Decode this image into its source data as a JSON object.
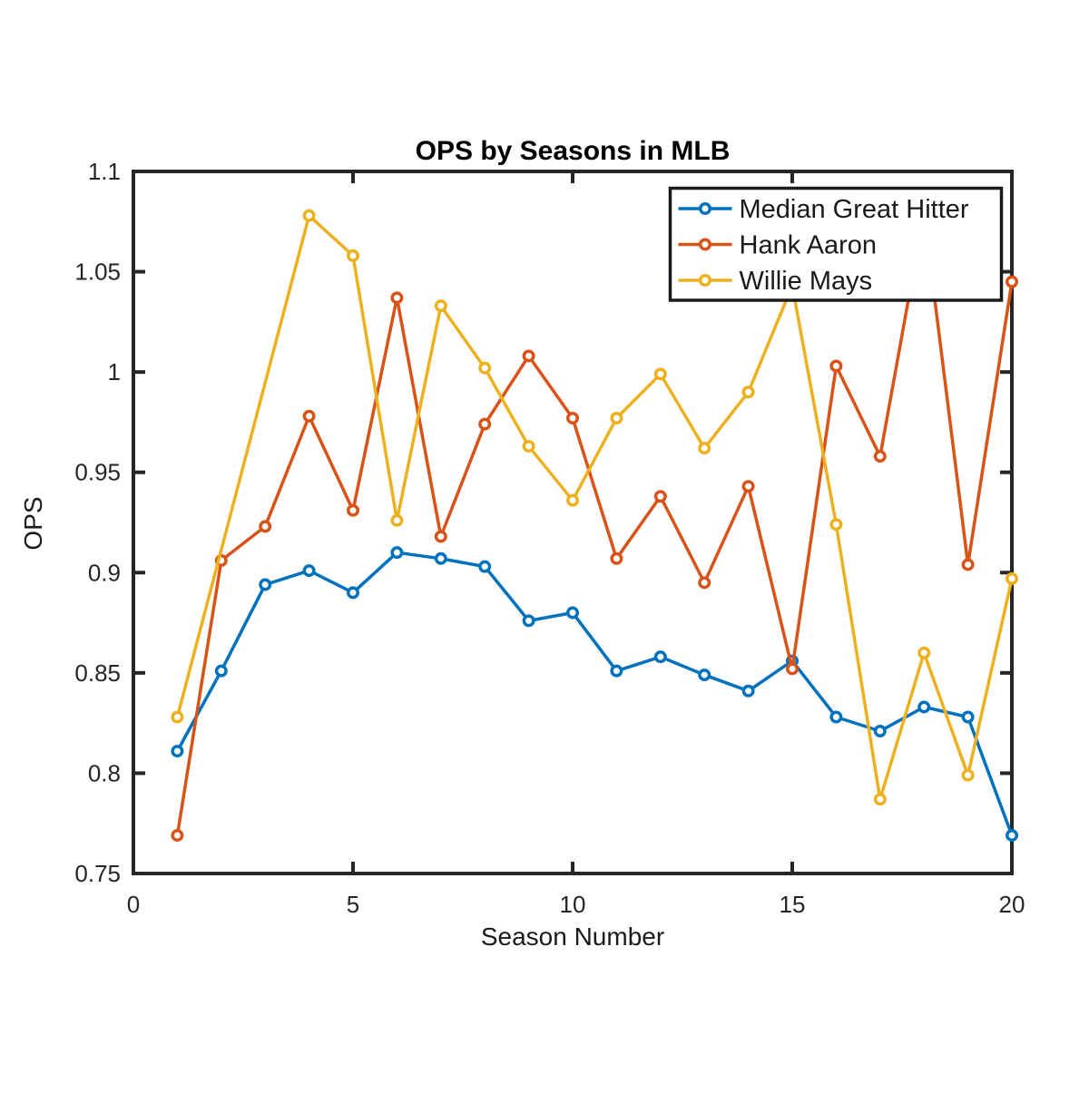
{
  "figure": {
    "background": "#ffffff",
    "axis_color": "#262626",
    "text_color": "#000000",
    "legend_border_color": "#1a1a1a",
    "legend_background": "#ffffff"
  },
  "chart_data": {
    "type": "line",
    "title": "OPS by Seasons in MLB",
    "xlabel": "Season Number",
    "ylabel": "OPS",
    "xlim": [
      0,
      20
    ],
    "ylim": [
      0.75,
      1.1
    ],
    "xticks": [
      0,
      5,
      10,
      15,
      20
    ],
    "xtick_labels": [
      "0",
      "5",
      "10",
      "15",
      "20"
    ],
    "yticks": [
      0.75,
      0.8,
      0.85,
      0.9,
      0.95,
      1.0,
      1.05,
      1.1
    ],
    "ytick_labels": [
      "0.75",
      "0.8",
      "0.85",
      "0.9",
      "0.95",
      "1",
      "1.05",
      "1.1"
    ],
    "x": [
      1,
      2,
      3,
      4,
      5,
      6,
      7,
      8,
      9,
      10,
      11,
      12,
      13,
      14,
      15,
      16,
      17,
      18,
      19,
      20
    ],
    "series": [
      {
        "name": "Median Great Hitter",
        "color": "#0072BD",
        "values": [
          0.811,
          0.851,
          0.894,
          0.901,
          0.89,
          0.91,
          0.907,
          0.903,
          0.876,
          0.88,
          0.851,
          0.858,
          0.849,
          0.841,
          0.856,
          0.828,
          0.821,
          0.833,
          0.828,
          0.769
        ]
      },
      {
        "name": "Hank Aaron",
        "color": "#D95319",
        "values": [
          0.769,
          0.906,
          0.923,
          0.978,
          0.931,
          1.037,
          0.918,
          0.974,
          1.008,
          0.977,
          0.907,
          0.938,
          0.895,
          0.943,
          0.852,
          1.003,
          0.958,
          1.079,
          0.904,
          1.045
        ]
      },
      {
        "name": "Willie Mays",
        "color": "#EDB120",
        "values": [
          0.828,
          null,
          null,
          1.078,
          1.058,
          0.926,
          1.033,
          1.002,
          0.963,
          0.936,
          0.977,
          0.999,
          0.962,
          0.99,
          1.043,
          0.924,
          0.787,
          0.86,
          0.799,
          0.897
        ]
      }
    ],
    "legend_position": "northeast",
    "grid": false,
    "marker": "o",
    "notes": "Willie Mays has no data points at seasons 2-3 (line connects season 1 directly to season 4). The Hank Aaron season-18 peak (1.079) and Willie Mays season-15 peak (1.043) are hidden behind the legend box."
  }
}
